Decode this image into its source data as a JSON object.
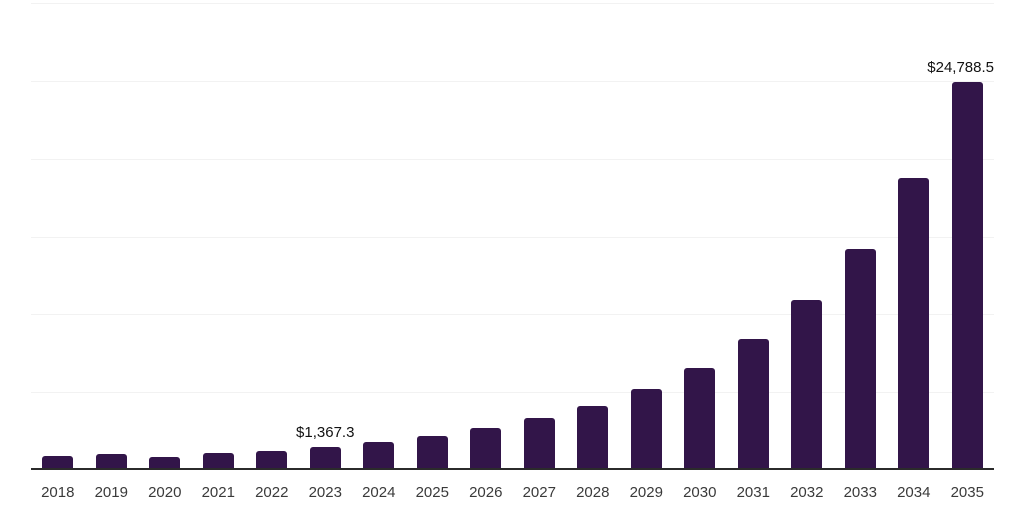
{
  "chart_data": {
    "type": "bar",
    "title": "",
    "xlabel": "",
    "ylabel": "",
    "categories": [
      "2018",
      "2019",
      "2020",
      "2021",
      "2022",
      "2023",
      "2024",
      "2025",
      "2026",
      "2027",
      "2028",
      "2029",
      "2030",
      "2031",
      "2032",
      "2033",
      "2034",
      "2035"
    ],
    "values": [
      770,
      895,
      705,
      960,
      1105,
      1367.3,
      1680,
      2065,
      2600,
      3195,
      3980,
      5100,
      6440,
      8310,
      10770,
      14070,
      18620,
      24788.5
    ],
    "point_labels": [
      "",
      "",
      "",
      "",
      "",
      "$1,367.3",
      "",
      "",
      "",
      "",
      "",
      "",
      "",
      "",
      "",
      "",
      "",
      "$24,788.5"
    ],
    "ylim": [
      0,
      30000
    ],
    "y_gridline_interval": 5000,
    "grid": true,
    "legend": "none",
    "y_axis_labels_visible": false,
    "colors": {
      "bar": "#321549",
      "grid": "#f2f2f2",
      "axis": "#2b2b2b",
      "x_label": "#3a3a3a",
      "data_label": "#111111",
      "background": "#ffffff"
    }
  }
}
